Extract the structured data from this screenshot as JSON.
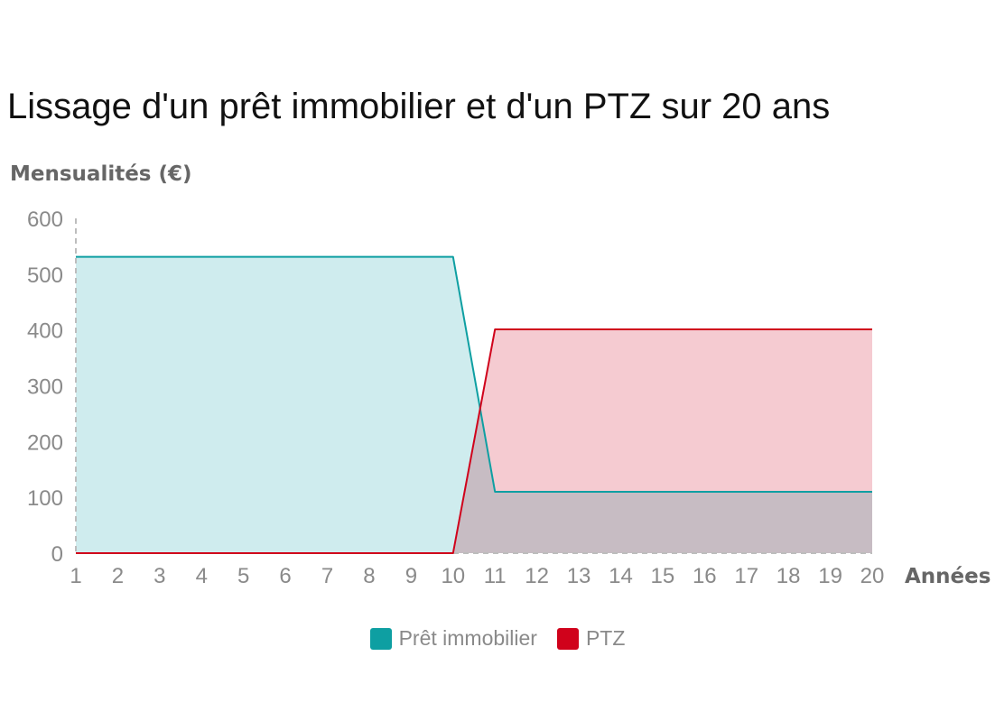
{
  "chart_data": {
    "type": "area",
    "title": "Lissage d'un prêt immobilier et d'un PTZ sur 20 ans",
    "ylabel": "Mensualités (€)",
    "xlabel": "Années",
    "x": [
      1,
      2,
      3,
      4,
      5,
      6,
      7,
      8,
      9,
      10,
      11,
      12,
      13,
      14,
      15,
      16,
      17,
      18,
      19,
      20
    ],
    "xlim": [
      1,
      20
    ],
    "ylim": [
      0,
      600
    ],
    "yticks": [
      0,
      100,
      200,
      300,
      400,
      500,
      600
    ],
    "grid": false,
    "legend_position": "bottom",
    "series": [
      {
        "name": "Prêt immobilier",
        "color": "#0e9fa2",
        "fill": "#cfecee",
        "values": [
          531,
          531,
          531,
          531,
          531,
          531,
          531,
          531,
          531,
          531,
          110,
          110,
          110,
          110,
          110,
          110,
          110,
          110,
          110,
          110
        ]
      },
      {
        "name": "PTZ",
        "color": "#d0021b",
        "fill": "#f5cbd1",
        "values": [
          0,
          0,
          0,
          0,
          0,
          0,
          0,
          0,
          0,
          0,
          401,
          401,
          401,
          401,
          401,
          401,
          401,
          401,
          401,
          401
        ]
      }
    ]
  }
}
